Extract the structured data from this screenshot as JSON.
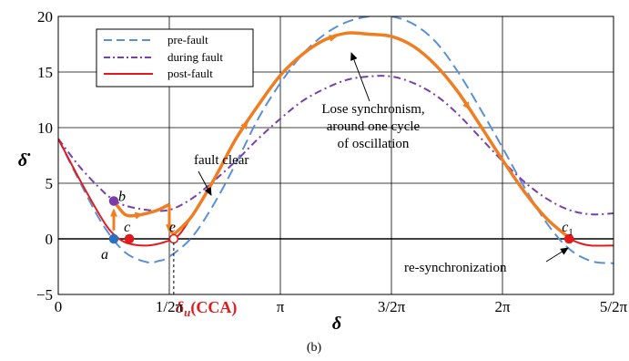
{
  "chart_data": {
    "type": "line",
    "subfigure_label": "(b)",
    "xlabel": "δ",
    "ylabel": "δ̇",
    "xlim": [
      0,
      2.5
    ],
    "ylim": [
      -5,
      20
    ],
    "x_ticks": [
      {
        "value": 0,
        "label": "0"
      },
      {
        "value": 0.5,
        "label": "1/2π"
      },
      {
        "value": 1.0,
        "label": "π"
      },
      {
        "value": 1.5,
        "label": "3/2π"
      },
      {
        "value": 2.0,
        "label": "2π"
      },
      {
        "value": 2.5,
        "label": "5/2π"
      }
    ],
    "y_ticks": [
      {
        "value": -5,
        "label": "−5"
      },
      {
        "value": 0,
        "label": "0"
      },
      {
        "value": 5,
        "label": "5"
      },
      {
        "value": 10,
        "label": "10"
      },
      {
        "value": 15,
        "label": "15"
      },
      {
        "value": 20,
        "label": "20"
      }
    ],
    "grid": true,
    "legend_position": "top-left",
    "series": [
      {
        "name": "pre-fault",
        "color": "#5b8fd6",
        "style": "dashed",
        "x": [
          0,
          0.1,
          0.2,
          0.3,
          0.4,
          0.45,
          0.5,
          0.6,
          0.7,
          0.8,
          0.9,
          1.0,
          1.1,
          1.2,
          1.3,
          1.4,
          1.5,
          1.6,
          1.7,
          1.8,
          1.9,
          2.0,
          2.1,
          2.2,
          2.3,
          2.4,
          2.5
        ],
        "y": [
          9,
          5.0,
          1.3,
          -1.2,
          -2.1,
          -2.0,
          -1.6,
          0.1,
          3.1,
          6.8,
          10.8,
          14.0,
          16.6,
          18.4,
          19.5,
          20.0,
          20.0,
          19.3,
          17.7,
          15.0,
          11.7,
          8.2,
          4.6,
          1.4,
          -0.9,
          -2.0,
          -2.2
        ]
      },
      {
        "name": "during fault",
        "color": "#7a3eaa",
        "style": "dash-dot",
        "x": [
          0,
          0.1,
          0.2,
          0.25,
          0.3,
          0.4,
          0.5,
          0.6,
          0.7,
          0.8,
          0.9,
          1.0,
          1.1,
          1.2,
          1.3,
          1.4,
          1.5,
          1.6,
          1.7,
          1.8,
          1.9,
          2.0,
          2.1,
          2.2,
          2.3,
          2.4,
          2.5
        ],
        "y": [
          9,
          6.4,
          4.3,
          3.5,
          3.0,
          2.6,
          2.6,
          3.6,
          5.2,
          7.0,
          9.0,
          10.8,
          12.4,
          13.5,
          14.3,
          14.6,
          14.6,
          14.0,
          12.9,
          11.2,
          9.1,
          7.0,
          5.1,
          3.6,
          2.6,
          2.2,
          2.3
        ]
      },
      {
        "name": "post-fault",
        "color": "#e31a1c",
        "style": "solid",
        "x": [
          0,
          0.1,
          0.2,
          0.25,
          0.3,
          0.35,
          0.4,
          0.45,
          0.5,
          0.52,
          0.55,
          0.6,
          0.7,
          0.8,
          0.9,
          1.0,
          1.1,
          1.2,
          1.3,
          1.4,
          1.5,
          1.6,
          1.7,
          1.8,
          1.9,
          2.0,
          2.1,
          2.2,
          2.3,
          2.35,
          2.4,
          2.5
        ],
        "y": [
          9,
          5.2,
          1.7,
          0.4,
          -0.3,
          -0.55,
          -0.6,
          -0.45,
          -0.15,
          0,
          0.5,
          2.0,
          5.3,
          9.0,
          12.0,
          14.7,
          16.6,
          17.9,
          18.5,
          18.4,
          18.2,
          17.3,
          15.6,
          13.2,
          10.2,
          7.1,
          4.2,
          1.8,
          0.1,
          -0.4,
          -0.6,
          -0.6
        ]
      }
    ],
    "trajectory": {
      "color": "#ef7d22",
      "x": [
        0.25,
        0.25,
        0.3,
        0.35,
        0.4,
        0.45,
        0.5,
        0.5,
        0.52,
        0.6,
        0.7,
        0.8,
        0.9,
        1.0,
        1.1,
        1.2,
        1.3,
        1.4,
        1.5,
        1.6,
        1.7,
        1.8,
        1.9,
        2.0,
        2.1,
        2.2,
        2.3
      ],
      "y": [
        0.6,
        3.4,
        2.2,
        2.1,
        2.3,
        2.6,
        3.1,
        0.8,
        0.4,
        2.0,
        5.3,
        9.0,
        12.0,
        14.7,
        16.6,
        17.9,
        18.5,
        18.4,
        18.2,
        17.3,
        15.6,
        13.2,
        10.2,
        7.1,
        4.2,
        1.8,
        0.1
      ]
    },
    "points": [
      {
        "label": "a",
        "x": 0.25,
        "y": 0,
        "color": "#2a70c2",
        "style": "filled"
      },
      {
        "label": "b",
        "x": 0.25,
        "y": 3.4,
        "color": "#7a3eaa",
        "style": "filled"
      },
      {
        "label": "c",
        "x": 0.32,
        "y": 0,
        "color": "#e31a1c",
        "style": "filled"
      },
      {
        "label": "e",
        "x": 0.52,
        "y": 0,
        "color": "#e31a1c",
        "style": "open"
      },
      {
        "label": "c1",
        "x": 2.3,
        "y": 0,
        "color": "#e31a1c",
        "style": "filled"
      }
    ],
    "annotations": {
      "fault_clear": "fault clear",
      "lose_sync_lines": [
        "Lose synchronism,",
        "around one cycle",
        "of oscillation"
      ],
      "resync": "re-synchronization",
      "delta_u_symbol": "δ",
      "delta_u_sub": "u",
      "delta_u_rest": "(CCA)",
      "delta_u_x": 0.52,
      "delta_u_color": "#e31a1c"
    }
  }
}
